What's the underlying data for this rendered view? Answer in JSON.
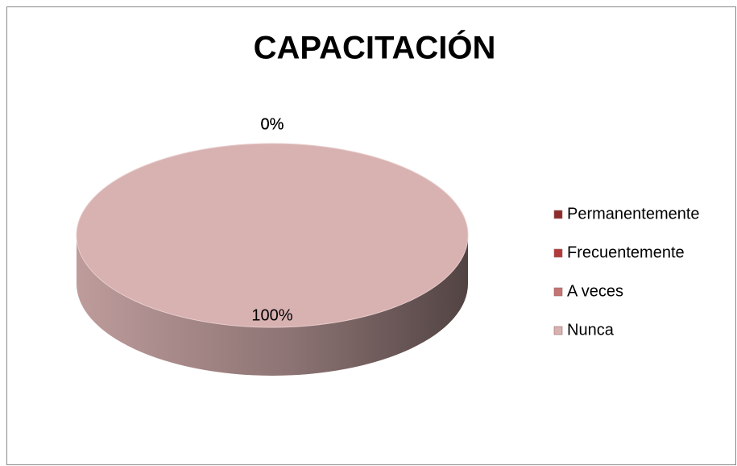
{
  "chart_data": {
    "type": "pie",
    "title": "CAPACITACIÓN",
    "categories": [
      "Permanentemente",
      "Frecuentemente",
      "A veces",
      "Nunca"
    ],
    "values": [
      0,
      0,
      0,
      100
    ],
    "value_labels": [
      "0%",
      "0%",
      "0%",
      "100%"
    ],
    "colors": [
      "#8e2b2b",
      "#b33a3a",
      "#c47473",
      "#d8b1b1"
    ],
    "legend": "right"
  }
}
